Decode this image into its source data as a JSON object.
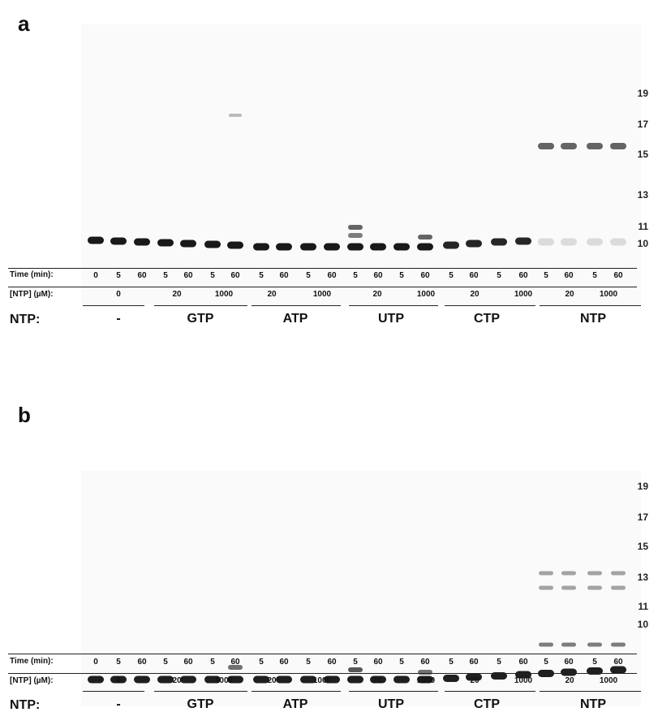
{
  "panels": [
    {
      "letter": "a",
      "markers": [
        "19",
        "17",
        "15",
        "13",
        "11",
        "10"
      ],
      "time_label": "Time (min):",
      "conc_label": "[NTP] (µM):",
      "ntp_label": "NTP:"
    },
    {
      "letter": "b",
      "markers": [
        "19",
        "17",
        "15",
        "13",
        "11",
        "10"
      ],
      "time_label": "Time (min):",
      "conc_label": "[NTP] (µM):",
      "ntp_label": "NTP:"
    }
  ],
  "times": [
    "0",
    "5",
    "60",
    "5",
    "60",
    "5",
    "60",
    "5",
    "60",
    "5",
    "60",
    "5",
    "60",
    "5",
    "60",
    "5",
    "60",
    "5",
    "60",
    "5",
    "60",
    "5",
    "60"
  ],
  "concentrations": [
    "0",
    "20",
    "1000",
    "20",
    "1000",
    "20",
    "1000",
    "20",
    "1000",
    "20",
    "1000"
  ],
  "groups": [
    "-",
    "GTP",
    "ATP",
    "UTP",
    "CTP",
    "NTP"
  ]
}
